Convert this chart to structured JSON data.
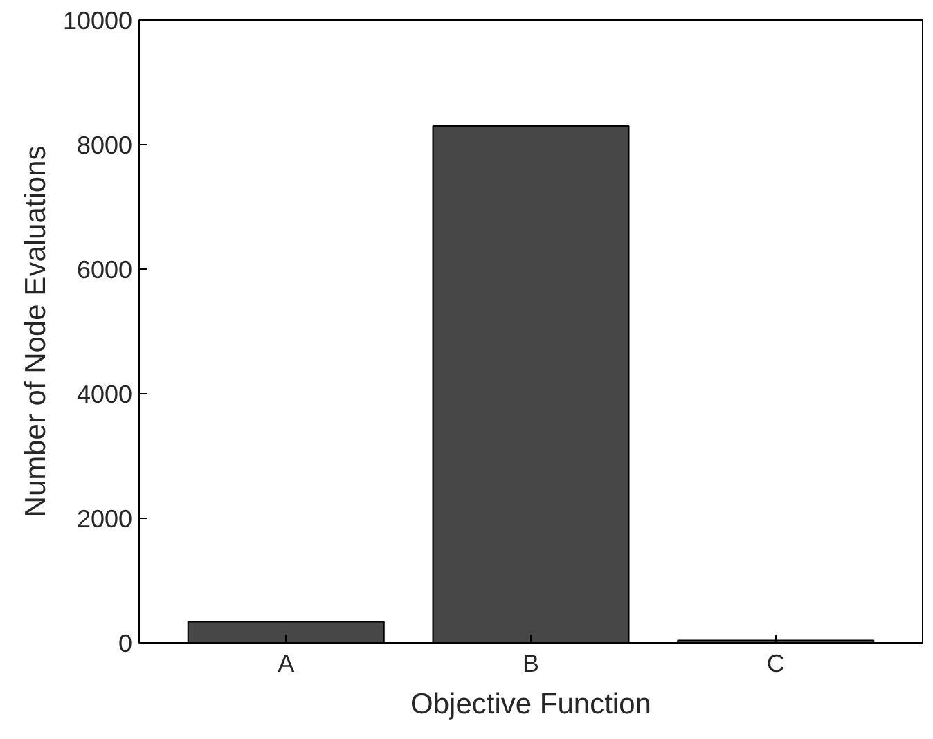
{
  "chart_data": {
    "type": "bar",
    "xlabel": "Objective Function",
    "ylabel": "Number of Node Evaluations",
    "categories": [
      "A",
      "B",
      "C"
    ],
    "values": [
      340,
      8300,
      40
    ],
    "color": "#474747",
    "ylim": [
      0,
      10000
    ],
    "yticks": [
      0,
      2000,
      4000,
      6000,
      8000,
      10000
    ],
    "grid": false
  }
}
